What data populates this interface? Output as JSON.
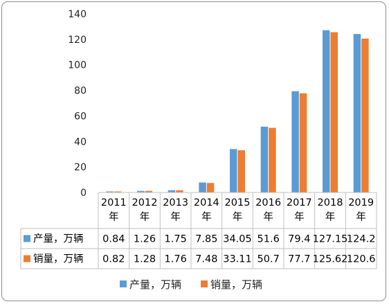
{
  "chart_data": {
    "type": "bar",
    "categories": [
      {
        "line1": "2011",
        "line2": "年"
      },
      {
        "line1": "2012",
        "line2": "年"
      },
      {
        "line1": "2013",
        "line2": "年"
      },
      {
        "line1": "2014",
        "line2": "年"
      },
      {
        "line1": "2015",
        "line2": "年"
      },
      {
        "line1": "2016",
        "line2": "年"
      },
      {
        "line1": "2017",
        "line2": "年"
      },
      {
        "line1": "2018",
        "line2": "年"
      },
      {
        "line1": "2019",
        "line2": "年"
      }
    ],
    "series": [
      {
        "name": "产量，万辆",
        "color": "#5b9bd5",
        "values": [
          0.84,
          1.26,
          1.75,
          7.85,
          34.05,
          51.6,
          79.4,
          127.15,
          124.2
        ],
        "labels": [
          "0.84",
          "1.26",
          "1.75",
          "7.85",
          "34.05",
          "51.6",
          "79.4",
          "127.15",
          "124.2"
        ]
      },
      {
        "name": "销量，万辆",
        "color": "#ed7d31",
        "values": [
          0.82,
          1.28,
          1.76,
          7.48,
          33.11,
          50.7,
          77.7,
          125.62,
          120.6
        ],
        "labels": [
          "0.82",
          "1.28",
          "1.76",
          "7.48",
          "33.11",
          "50.7",
          "77.7",
          "125.62",
          "120.6"
        ]
      }
    ],
    "yticks": [
      "0",
      "20",
      "40",
      "60",
      "80",
      "100",
      "120",
      "140"
    ],
    "ylim": [
      0,
      140
    ],
    "grid": false,
    "data_table": true,
    "legend": "bottom"
  }
}
